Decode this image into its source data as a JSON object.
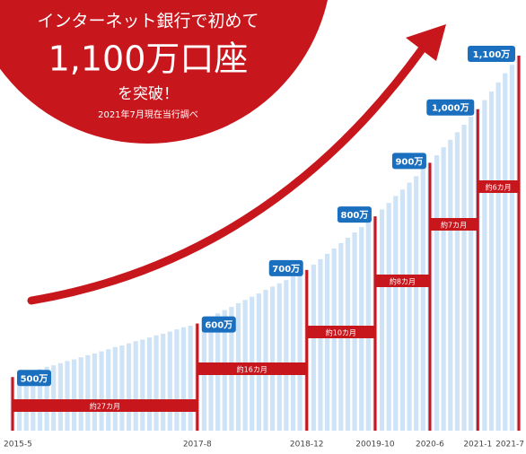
{
  "chart_data": {
    "type": "bar",
    "headline": "インターネット銀行で初めて",
    "title": "1,100万口座",
    "subtitle": "を突破！",
    "note": "2021年7月現在当行調べ",
    "categories": [
      "2015-5",
      null,
      null,
      null,
      null,
      null,
      null,
      null,
      null,
      null,
      null,
      null,
      null,
      null,
      null,
      null,
      null,
      null,
      null,
      null,
      null,
      null,
      null,
      null,
      null,
      null,
      null,
      "2017-8",
      null,
      null,
      null,
      null,
      null,
      null,
      null,
      null,
      null,
      null,
      null,
      null,
      null,
      null,
      null,
      "2018-12",
      null,
      null,
      null,
      null,
      null,
      null,
      null,
      null,
      null,
      "20019-10",
      null,
      null,
      null,
      null,
      null,
      null,
      null,
      "2020-6",
      null,
      null,
      null,
      null,
      null,
      null,
      "2021-1",
      null,
      null,
      null,
      null,
      null,
      "2021-7"
    ],
    "values": [
      500,
      504,
      507,
      511,
      515,
      519,
      522,
      526,
      530,
      533,
      537,
      541,
      544,
      548,
      552,
      556,
      559,
      563,
      567,
      570,
      574,
      578,
      581,
      585,
      589,
      593,
      596,
      600,
      606,
      613,
      619,
      625,
      631,
      638,
      644,
      650,
      656,
      663,
      669,
      675,
      681,
      688,
      694,
      700,
      710,
      720,
      730,
      740,
      750,
      760,
      770,
      780,
      790,
      800,
      813,
      825,
      838,
      850,
      863,
      875,
      888,
      900,
      914,
      929,
      943,
      957,
      971,
      986,
      1000,
      1017,
      1033,
      1050,
      1067,
      1083,
      1100
    ],
    "color": "#cfe3f6",
    "ylim": [
      400,
      1100
    ],
    "milestones": [
      {
        "value": 500,
        "label": "500万"
      },
      {
        "value": 600,
        "label": "600万",
        "duration": "約27カ月"
      },
      {
        "value": 700,
        "label": "700万",
        "duration": "約16カ月"
      },
      {
        "value": 800,
        "label": "800万",
        "duration": "約10カ月"
      },
      {
        "value": 900,
        "label": "900万",
        "duration": "約8カ月"
      },
      {
        "value": 1000,
        "label": "1,000万",
        "duration": "約7カ月"
      },
      {
        "value": 1100,
        "label": "1,100万",
        "duration": "約6カ月"
      }
    ],
    "milestone_color": "#c8161d",
    "label_color": "#1b6fbf"
  }
}
